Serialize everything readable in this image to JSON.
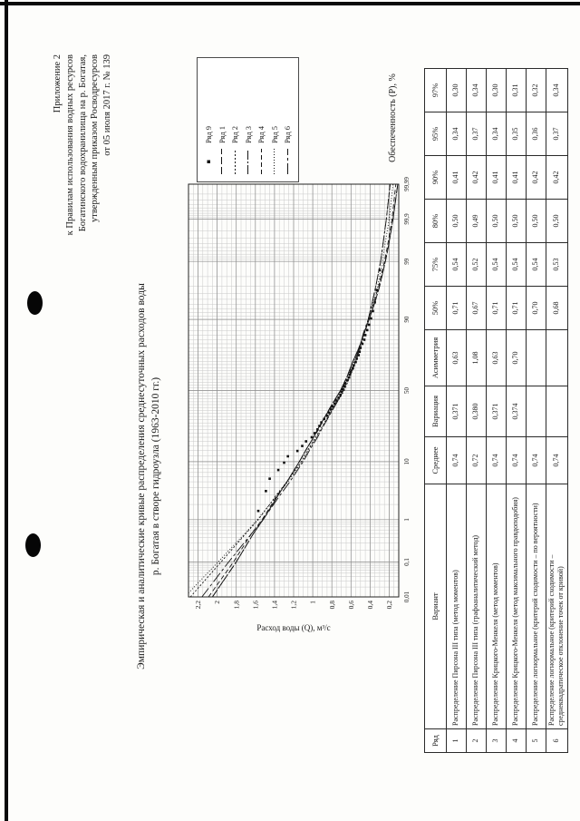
{
  "page": {
    "bg": "#fdfdfb",
    "ink": "#1a1a1a"
  },
  "appendix": {
    "lines": [
      "Приложение 2",
      "к Правилам использования водных ресурсов",
      "Богатинского водохранилища на р. Богатая,",
      "утвержденным приказом Росводресурсов",
      "от 05 июля 2017 г. № 139"
    ]
  },
  "title": {
    "line1": "Эмпирическая и аналитические кривые распределения среднесуточных расходов воды",
    "line2": "р. Богатая  в створе гидроузла (1963-2010 гг.)"
  },
  "chart_data": {
    "type": "line",
    "title": "",
    "xlabel": "Обеспеченность  (Р), %",
    "ylabel": "Расход воды (Q), м³/с",
    "x_scale": "normal-probability",
    "xlim": [
      0.01,
      99.99
    ],
    "ylim": [
      0.1,
      2.3
    ],
    "x_ticks_labeled": [
      0.01,
      0.1,
      1,
      10,
      50,
      90,
      99,
      99.9,
      99.99
    ],
    "y_ticks": [
      0.2,
      0.4,
      0.6,
      0.8,
      1,
      1.2,
      1.4,
      1.6,
      1.8,
      2,
      2.2
    ],
    "grid": "dense probability paper",
    "legend_position": "right",
    "empirical": {
      "name": "Ряд 9",
      "marker": "square",
      "points": [
        [
          1.5,
          1.57
        ],
        [
          3.5,
          1.49
        ],
        [
          5.6,
          1.45
        ],
        [
          7.6,
          1.36
        ],
        [
          9.7,
          1.3
        ],
        [
          11.8,
          1.26
        ],
        [
          13.8,
          1.16
        ],
        [
          15.9,
          1.11
        ],
        [
          18,
          1.07
        ],
        [
          20,
          1.01
        ],
        [
          22.1,
          0.98
        ],
        [
          24.2,
          0.95
        ],
        [
          26.2,
          0.93
        ],
        [
          28.3,
          0.91
        ],
        [
          30.4,
          0.88
        ],
        [
          32.4,
          0.85
        ],
        [
          34.5,
          0.83
        ],
        [
          36.6,
          0.81
        ],
        [
          38.6,
          0.79
        ],
        [
          40.7,
          0.77
        ],
        [
          42.8,
          0.75
        ],
        [
          44.8,
          0.73
        ],
        [
          46.9,
          0.71
        ],
        [
          49,
          0.7
        ],
        [
          51,
          0.69
        ],
        [
          53.1,
          0.67
        ],
        [
          55.2,
          0.66
        ],
        [
          57.2,
          0.64
        ],
        [
          59.3,
          0.62
        ],
        [
          61.4,
          0.61
        ],
        [
          63.4,
          0.6
        ],
        [
          65.5,
          0.58
        ],
        [
          67.6,
          0.57
        ],
        [
          69.6,
          0.55
        ],
        [
          71.7,
          0.54
        ],
        [
          73.8,
          0.52
        ],
        [
          75.8,
          0.51
        ],
        [
          77.9,
          0.5
        ],
        [
          80,
          0.48
        ],
        [
          82,
          0.46
        ],
        [
          84.1,
          0.45
        ],
        [
          86.2,
          0.43
        ],
        [
          88.2,
          0.41
        ],
        [
          90.3,
          0.39
        ],
        [
          92.4,
          0.37
        ],
        [
          94.4,
          0.35
        ],
        [
          96.5,
          0.33
        ],
        [
          98.5,
          0.3
        ]
      ]
    },
    "series": [
      {
        "name": "Ряд 1",
        "dash": "8 3",
        "points": [
          [
            0.01,
            2.05
          ],
          [
            0.1,
            1.8
          ],
          [
            0.5,
            1.62
          ],
          [
            1,
            1.52
          ],
          [
            2,
            1.42
          ],
          [
            3,
            1.36
          ],
          [
            5,
            1.27
          ],
          [
            10,
            1.14
          ],
          [
            15,
            1.06
          ],
          [
            20,
            0.99
          ],
          [
            25,
            0.94
          ],
          [
            30,
            0.89
          ],
          [
            40,
            0.8
          ],
          [
            50,
            0.71
          ],
          [
            60,
            0.64
          ],
          [
            70,
            0.58
          ],
          [
            75,
            0.54
          ],
          [
            80,
            0.5
          ],
          [
            85,
            0.46
          ],
          [
            90,
            0.41
          ],
          [
            95,
            0.34
          ],
          [
            97,
            0.3
          ],
          [
            99,
            0.24
          ],
          [
            99.5,
            0.21
          ],
          [
            99.9,
            0.16
          ],
          [
            99.99,
            0.11
          ]
        ]
      },
      {
        "name": "Ряд 2",
        "dash": "2 2",
        "points": [
          [
            0.01,
            2.28
          ],
          [
            0.1,
            1.96
          ],
          [
            0.5,
            1.7
          ],
          [
            1,
            1.57
          ],
          [
            2,
            1.45
          ],
          [
            3,
            1.38
          ],
          [
            5,
            1.27
          ],
          [
            10,
            1.12
          ],
          [
            15,
            1.04
          ],
          [
            20,
            0.97
          ],
          [
            25,
            0.91
          ],
          [
            30,
            0.86
          ],
          [
            40,
            0.76
          ],
          [
            50,
            0.67
          ],
          [
            60,
            0.61
          ],
          [
            70,
            0.55
          ],
          [
            75,
            0.52
          ],
          [
            80,
            0.49
          ],
          [
            85,
            0.46
          ],
          [
            90,
            0.42
          ],
          [
            95,
            0.37
          ],
          [
            97,
            0.34
          ],
          [
            99,
            0.29
          ],
          [
            99.5,
            0.27
          ],
          [
            99.9,
            0.23
          ],
          [
            99.99,
            0.19
          ]
        ]
      },
      {
        "name": "Ряд 3",
        "dash": "10 2 2 2",
        "points": [
          [
            0.01,
            2.05
          ],
          [
            0.1,
            1.8
          ],
          [
            0.5,
            1.62
          ],
          [
            1,
            1.52
          ],
          [
            2,
            1.42
          ],
          [
            3,
            1.36
          ],
          [
            5,
            1.27
          ],
          [
            10,
            1.14
          ],
          [
            15,
            1.06
          ],
          [
            20,
            0.99
          ],
          [
            25,
            0.94
          ],
          [
            30,
            0.89
          ],
          [
            40,
            0.8
          ],
          [
            50,
            0.71
          ],
          [
            60,
            0.64
          ],
          [
            70,
            0.58
          ],
          [
            75,
            0.54
          ],
          [
            80,
            0.5
          ],
          [
            85,
            0.46
          ],
          [
            90,
            0.41
          ],
          [
            95,
            0.34
          ],
          [
            97,
            0.3
          ],
          [
            99,
            0.24
          ],
          [
            99.5,
            0.21
          ],
          [
            99.9,
            0.16
          ],
          [
            99.99,
            0.11
          ]
        ]
      },
      {
        "name": "Ряд 4",
        "dash": "5 3",
        "points": [
          [
            0.01,
            2.09
          ],
          [
            0.1,
            1.83
          ],
          [
            0.5,
            1.64
          ],
          [
            1,
            1.53
          ],
          [
            2,
            1.43
          ],
          [
            3,
            1.37
          ],
          [
            5,
            1.27
          ],
          [
            10,
            1.14
          ],
          [
            15,
            1.06
          ],
          [
            20,
            0.99
          ],
          [
            25,
            0.93
          ],
          [
            30,
            0.89
          ],
          [
            40,
            0.79
          ],
          [
            50,
            0.71
          ],
          [
            60,
            0.64
          ],
          [
            70,
            0.58
          ],
          [
            75,
            0.54
          ],
          [
            80,
            0.5
          ],
          [
            85,
            0.46
          ],
          [
            90,
            0.41
          ],
          [
            95,
            0.35
          ],
          [
            97,
            0.31
          ],
          [
            99,
            0.25
          ],
          [
            99.5,
            0.22
          ],
          [
            99.9,
            0.17
          ],
          [
            99.99,
            0.13
          ]
        ]
      },
      {
        "name": "Ряд 5",
        "dash": "1 2",
        "points": [
          [
            0.01,
            2.34
          ],
          [
            0.1,
            1.99
          ],
          [
            0.5,
            1.71
          ],
          [
            1,
            1.58
          ],
          [
            2,
            1.45
          ],
          [
            3,
            1.37
          ],
          [
            5,
            1.26
          ],
          [
            10,
            1.11
          ],
          [
            15,
            1.03
          ],
          [
            20,
            0.96
          ],
          [
            25,
            0.9
          ],
          [
            30,
            0.85
          ],
          [
            40,
            0.77
          ],
          [
            50,
            0.7
          ],
          [
            60,
            0.63
          ],
          [
            70,
            0.57
          ],
          [
            75,
            0.54
          ],
          [
            80,
            0.5
          ],
          [
            85,
            0.46
          ],
          [
            90,
            0.42
          ],
          [
            95,
            0.36
          ],
          [
            97,
            0.32
          ],
          [
            99,
            0.27
          ],
          [
            99.5,
            0.25
          ],
          [
            99.9,
            0.2
          ],
          [
            99.99,
            0.16
          ]
        ]
      },
      {
        "name": "Ряд 6",
        "dash": "12 3 3 3",
        "points": [
          [
            0.01,
            2.16
          ],
          [
            0.1,
            1.88
          ],
          [
            0.5,
            1.64
          ],
          [
            1,
            1.52
          ],
          [
            2,
            1.41
          ],
          [
            3,
            1.34
          ],
          [
            5,
            1.24
          ],
          [
            10,
            1.1
          ],
          [
            15,
            1.02
          ],
          [
            20,
            0.95
          ],
          [
            25,
            0.9
          ],
          [
            30,
            0.85
          ],
          [
            40,
            0.76
          ],
          [
            50,
            0.68
          ],
          [
            60,
            0.62
          ],
          [
            70,
            0.56
          ],
          [
            75,
            0.53
          ],
          [
            80,
            0.5
          ],
          [
            85,
            0.47
          ],
          [
            90,
            0.42
          ],
          [
            95,
            0.37
          ],
          [
            97,
            0.34
          ],
          [
            99,
            0.29
          ],
          [
            99.5,
            0.27
          ],
          [
            99.9,
            0.23
          ],
          [
            99.99,
            0.19
          ]
        ]
      }
    ]
  },
  "table": {
    "columns": [
      "Ряд",
      "Вариант",
      "Среднее",
      "Вариация",
      "Асимметрия",
      "50%",
      "75%",
      "80%",
      "90%",
      "95%",
      "97%"
    ],
    "rows": [
      [
        "1",
        "Распределение Пирсона III типа (метод моментов)",
        "0,74",
        "0,371",
        "0,63",
        "0,71",
        "0,54",
        "0,50",
        "0,41",
        "0,34",
        "0,30"
      ],
      [
        "2",
        "Распределение Пирсона III типа (графоаналитический метод)",
        "0,72",
        "0,380",
        "1,08",
        "0,67",
        "0,52",
        "0,49",
        "0,42",
        "0,37",
        "0,34"
      ],
      [
        "3",
        "Распределение Крицкого-Менкеля (метод моментов)",
        "0,74",
        "0,371",
        "0,63",
        "0,71",
        "0,54",
        "0,50",
        "0,41",
        "0,34",
        "0,30"
      ],
      [
        "4",
        "Распределение Крицкого-Менкеля (метод максимального правдоподобия)",
        "0,74",
        "0,374",
        "0,70",
        "0,71",
        "0,54",
        "0,50",
        "0,41",
        "0,35",
        "0,31"
      ],
      [
        "5",
        "Распределение логнормальное (критерий сходимости – по вероятности)",
        "0,74",
        "",
        "",
        "0,70",
        "0,54",
        "0,50",
        "0,42",
        "0,36",
        "0,32"
      ],
      [
        "6",
        "Распределение логнормальное (критерий сходимости – среднеквадратическое отклонение точек от кривой)",
        "0,74",
        "",
        "",
        "0,68",
        "0,53",
        "0,50",
        "0,42",
        "0,37",
        "0,34"
      ]
    ]
  }
}
